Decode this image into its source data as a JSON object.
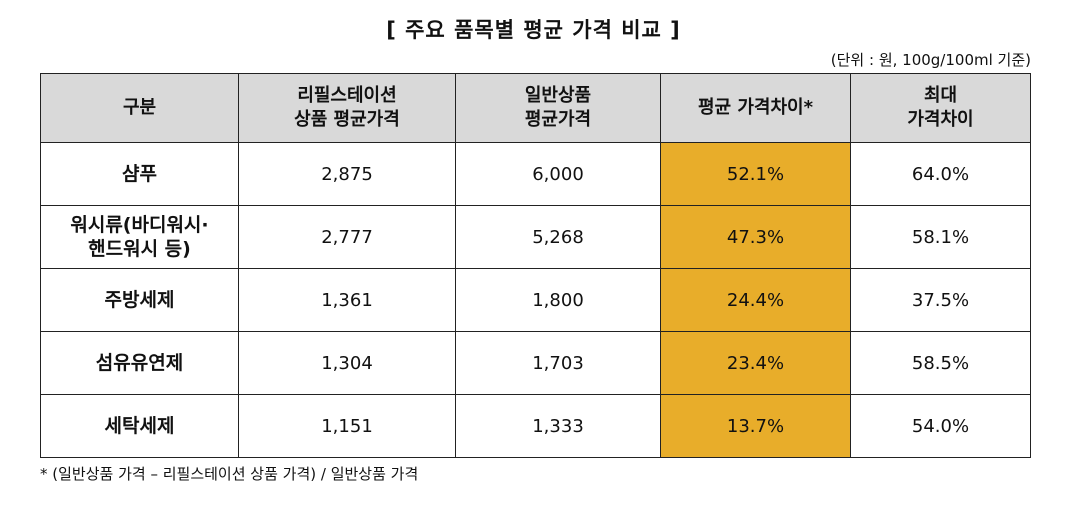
{
  "title": "[ 주요 품목별 평균 가격 비교 ]",
  "unit_note": "(단위 : 원, 100g/100ml 기준)",
  "table": {
    "headers": [
      "구분",
      "리필스테이션\n상품 평균가격",
      "일반상품\n평균가격",
      "평균 가격차이*",
      "최대\n가격차이"
    ],
    "rows": [
      {
        "name": "샴푸",
        "refill": "2,875",
        "regular": "6,000",
        "avg_diff": "52.1%",
        "max_diff": "64.0%"
      },
      {
        "name": "워시류(바디워시·\n핸드워시 등)",
        "refill": "2,777",
        "regular": "5,268",
        "avg_diff": "47.3%",
        "max_diff": "58.1%"
      },
      {
        "name": "주방세제",
        "refill": "1,361",
        "regular": "1,800",
        "avg_diff": "24.4%",
        "max_diff": "37.5%"
      },
      {
        "name": "섬유유연제",
        "refill": "1,304",
        "regular": "1,703",
        "avg_diff": "23.4%",
        "max_diff": "58.5%"
      },
      {
        "name": "세탁세제",
        "refill": "1,151",
        "regular": "1,333",
        "avg_diff": "13.7%",
        "max_diff": "54.0%"
      }
    ]
  },
  "footnote": "* (일반상품 가격 – 리필스테이션 상품 가격) / 일반상품 가격",
  "colors": {
    "header_bg": "#d9d9d9",
    "highlight": "#e8ad2a"
  }
}
